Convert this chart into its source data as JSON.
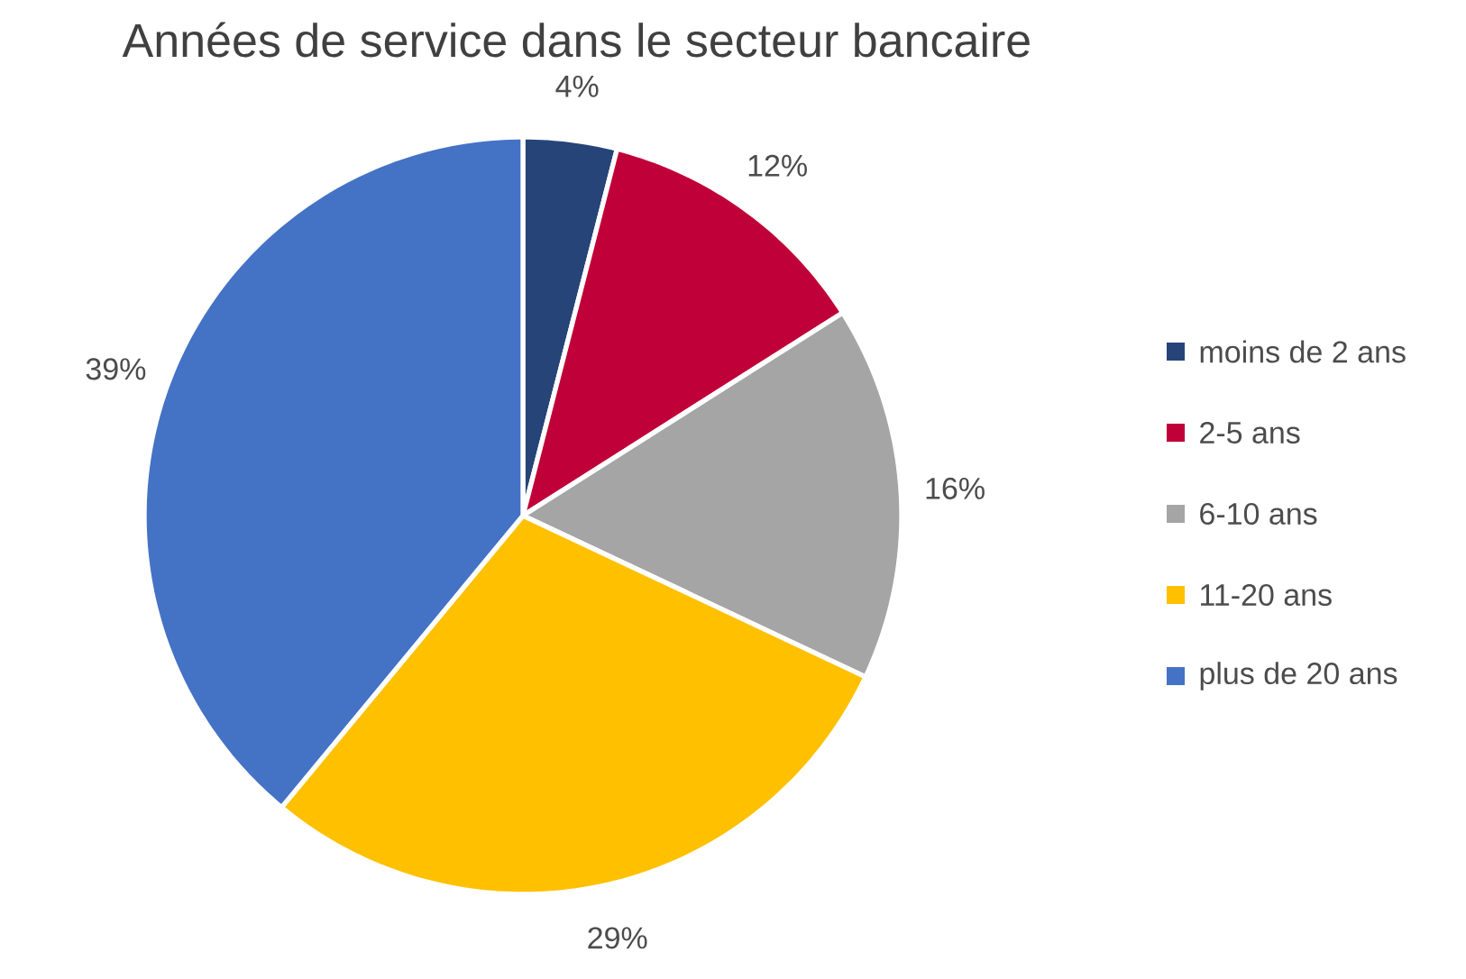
{
  "chart_data": {
    "type": "pie",
    "title": "Années de service dans le secteur bancaire",
    "categories": [
      "moins de 2 ans",
      "2-5 ans",
      "6-10 ans",
      "11-20 ans",
      "plus de 20 ans"
    ],
    "values": [
      4,
      12,
      16,
      29,
      39
    ],
    "colors": [
      "#264478",
      "#c00039",
      "#a5a5a5",
      "#ffc000",
      "#4472c4"
    ],
    "value_labels": [
      "4%",
      "12%",
      "16%",
      "29%",
      "39%"
    ],
    "legend": "right"
  }
}
